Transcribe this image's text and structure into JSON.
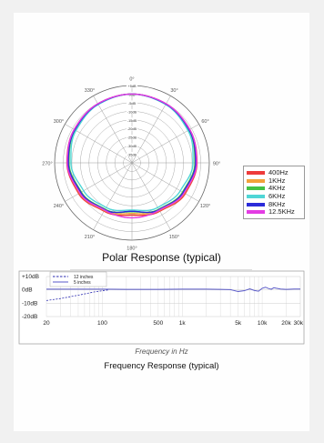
{
  "chart_data": [
    {
      "type": "polar",
      "title": "Polar Response (typical)",
      "angle_labels": [
        "0°",
        "30°",
        "60°",
        "90°",
        "120°",
        "150°",
        "180°",
        "210°",
        "240°",
        "270°",
        "300°",
        "330°"
      ],
      "angles_deg": [
        0,
        30,
        60,
        90,
        120,
        150,
        180,
        210,
        240,
        270,
        300,
        330
      ],
      "radial_labels": [
        "+5dB",
        "0dB",
        "-5dB",
        "-10dB",
        "-15dB",
        "-20dB",
        "-25dB",
        "-30dB",
        "-35dB"
      ],
      "radial_range_db": [
        -40,
        5
      ],
      "legend_position": "right",
      "series": [
        {
          "name": "400Hz",
          "color": "#ee3b3b",
          "db": [
            0,
            -0.4,
            -1.2,
            -2.2,
            -4.2,
            -7.5,
            -9.5,
            -7.5,
            -4.2,
            -2.2,
            -1.2,
            -0.4
          ]
        },
        {
          "name": "1KHz",
          "color": "#f2a23a",
          "db": [
            0,
            -0.5,
            -1.4,
            -2.6,
            -4.8,
            -8.0,
            -10.5,
            -8.0,
            -4.8,
            -2.6,
            -1.4,
            -0.5
          ]
        },
        {
          "name": "4KHz",
          "color": "#44c244",
          "db": [
            0,
            -0.6,
            -1.8,
            -3.4,
            -6.0,
            -8.8,
            -11.5,
            -8.8,
            -6.0,
            -3.4,
            -1.8,
            -0.6
          ]
        },
        {
          "name": "6KHz",
          "color": "#4fd6d6",
          "db": [
            0,
            -0.8,
            -2.4,
            -4.5,
            -7.5,
            -10.0,
            -12.5,
            -10.0,
            -7.5,
            -4.5,
            -2.4,
            -0.8
          ]
        },
        {
          "name": "8KHz",
          "color": "#2b2bd9",
          "db": [
            0,
            -0.5,
            -1.6,
            -3.0,
            -5.6,
            -8.5,
            -11.8,
            -8.5,
            -5.6,
            -3.0,
            -1.6,
            -0.5
          ]
        },
        {
          "name": "12.5KHz",
          "color": "#e33ce3",
          "db": [
            0,
            -0.3,
            -1.2,
            -2.4,
            -5.0,
            -8.2,
            -8.0,
            -8.2,
            -5.0,
            -2.4,
            -1.2,
            -0.3
          ]
        }
      ]
    },
    {
      "type": "line",
      "title": "Frequency Response (typical)",
      "xlabel": "Frequency in Hz",
      "x_scale": "log",
      "xlim": [
        20,
        30000
      ],
      "ylim": [
        -20,
        10
      ],
      "x_ticks": [
        20,
        100,
        500,
        1000,
        5000,
        10000,
        20000,
        30000
      ],
      "x_tick_labels": [
        "20",
        "100",
        "500",
        "1k",
        "5k",
        "10k",
        "20k",
        "30k"
      ],
      "y_ticks": [
        10,
        0,
        -10,
        -20
      ],
      "y_tick_labels": [
        "+10dB",
        "0dB",
        "-10dB",
        "-20dB"
      ],
      "grid": true,
      "legend_position": "top-left",
      "series": [
        {
          "name": "12 inches",
          "color": "#2a2ab0",
          "style": "dashed",
          "x": [
            20,
            30,
            50,
            80,
            120
          ],
          "y": [
            -8,
            -6.5,
            -4,
            -1.5,
            0
          ]
        },
        {
          "name": "5 inches",
          "color": "#5a5ac8",
          "style": "solid",
          "x": [
            20,
            50,
            100,
            200,
            500,
            1000,
            2000,
            3000,
            4000,
            5000,
            6000,
            7000,
            8000,
            9000,
            10000,
            11000,
            12000,
            13000,
            14000,
            15000,
            17000,
            20000,
            25000,
            30000
          ],
          "y": [
            0.5,
            0.5,
            0.5,
            0.4,
            0.4,
            0.5,
            0.5,
            0.4,
            0.2,
            -1.2,
            -0.6,
            0.8,
            -0.5,
            -1.0,
            1.2,
            2.0,
            1.0,
            0.5,
            1.6,
            1.2,
            0.6,
            0.4,
            0.6,
            0.6
          ]
        }
      ]
    }
  ]
}
